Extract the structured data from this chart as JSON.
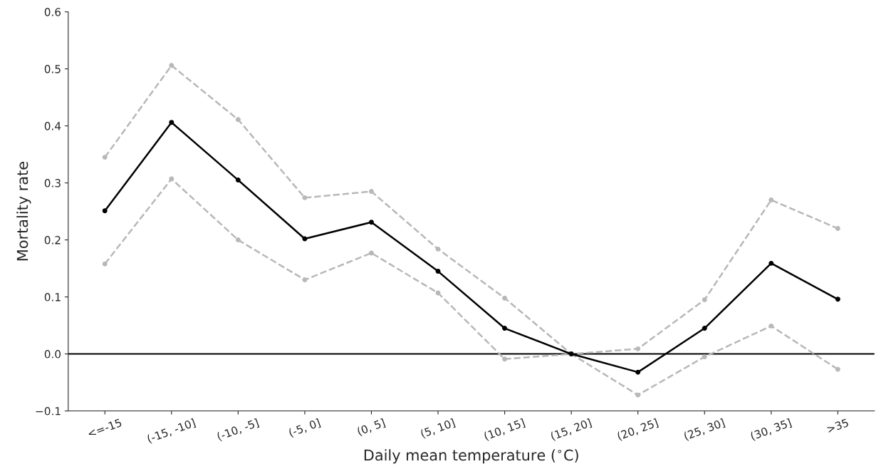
{
  "chart_data": {
    "type": "line",
    "xlabel": "Daily mean temperature ($^{∘}$C)",
    "ylabel": "Mortality rate",
    "categories": [
      "<=-15",
      "(-15, -10]",
      "(-10, -5]",
      "(-5, 0]",
      "(0, 5]",
      "(5, 10]",
      "(10, 15]",
      "(15, 20]",
      "(20, 25]",
      "(25, 30]",
      "(30, 35]",
      ">35"
    ],
    "series": [
      {
        "color": "#b8b8b8",
        "line_style": "dashed",
        "values": [
          0.345,
          0.506,
          0.411,
          0.274,
          0.285,
          0.184,
          0.098,
          0.0,
          0.009,
          0.095,
          0.27,
          0.22
        ]
      },
      {
        "color": "#b8b8b8",
        "line_style": "dashed",
        "values": [
          0.158,
          0.307,
          0.2,
          0.13,
          0.177,
          0.107,
          -0.009,
          0.0,
          -0.072,
          -0.005,
          0.049,
          -0.027
        ]
      },
      {
        "color": "#000000",
        "line_style": "solid",
        "values": [
          0.251,
          0.406,
          0.305,
          0.202,
          0.231,
          0.145,
          0.045,
          0.0,
          -0.032,
          0.045,
          0.159,
          0.096
        ]
      }
    ],
    "ylim": [
      -0.1,
      0.6
    ],
    "yticks": [
      {
        "value": -0.1,
        "label": "−0.1"
      },
      {
        "value": 0.0,
        "label": "0.0"
      },
      {
        "value": 0.1,
        "label": "0.1"
      },
      {
        "value": 0.2,
        "label": "0.2"
      },
      {
        "value": 0.3,
        "label": "0.3"
      },
      {
        "value": 0.4,
        "label": "0.4"
      },
      {
        "value": 0.5,
        "label": "0.5"
      },
      {
        "value": 0.6,
        "label": "0.6"
      }
    ],
    "ref_lines": [
      {
        "axis": "y",
        "value": 0,
        "color": "#000000",
        "line_style": "solid"
      }
    ],
    "marker": "circle",
    "grid": false,
    "legend": false
  }
}
